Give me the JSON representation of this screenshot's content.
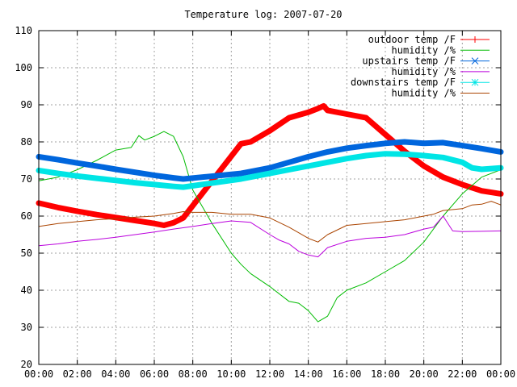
{
  "chart_data": {
    "type": "line",
    "title": "Temperature log: 2007-07-20",
    "xlabel": "",
    "ylabel": "",
    "xlim": [
      "00:00",
      "24:00"
    ],
    "ylim": [
      20,
      110
    ],
    "grid": true,
    "legend_position": "top-right",
    "x_ticks": [
      "00:00",
      "02:00",
      "04:00",
      "06:00",
      "08:00",
      "10:00",
      "12:00",
      "14:00",
      "16:00",
      "18:00",
      "20:00",
      "22:00",
      "00:00"
    ],
    "y_ticks": [
      20,
      30,
      40,
      50,
      60,
      70,
      80,
      90,
      100,
      110
    ],
    "series": [
      {
        "name": "outdoor temp /F",
        "color": "#ff0000",
        "marker": "plus",
        "x": [
          0,
          1,
          2,
          3,
          4,
          5,
          6,
          6.5,
          7,
          7.5,
          10.5,
          11,
          12,
          13,
          14,
          14.5,
          14.8,
          15,
          16,
          17,
          18,
          19,
          20,
          21,
          22,
          23,
          24
        ],
        "y": [
          63.5,
          62.3,
          61.3,
          60.4,
          59.6,
          58.8,
          58.0,
          57.5,
          58.2,
          59.5,
          79.5,
          80.0,
          83.0,
          86.5,
          88.0,
          89.0,
          89.7,
          88.5,
          87.5,
          86.5,
          82.0,
          77.5,
          73.5,
          70.5,
          68.5,
          66.8,
          66.0
        ]
      },
      {
        "name": "humidity /%",
        "color": "#00bb00",
        "marker": "none",
        "x": [
          0,
          1,
          2,
          3,
          4,
          4.8,
          5.2,
          5.5,
          6,
          6.5,
          7,
          7.5,
          8,
          9,
          10,
          10.5,
          11,
          12,
          13,
          13.5,
          14,
          14.5,
          15,
          15.5,
          16,
          17,
          18,
          19,
          20,
          21,
          22,
          23,
          24
        ],
        "y": [
          69.5,
          70.5,
          72.5,
          75.0,
          77.8,
          78.5,
          81.7,
          80.5,
          81.5,
          82.8,
          81.5,
          76.0,
          67.0,
          58.0,
          50.0,
          47.0,
          44.5,
          41.0,
          37.0,
          36.5,
          34.5,
          31.5,
          33.0,
          38.0,
          40.0,
          42.0,
          45.0,
          48.0,
          53.0,
          60.0,
          66.0,
          70.5,
          72.5
        ]
      },
      {
        "name": "upstairs temp /F",
        "color": "#0066dd",
        "marker": "x",
        "x": [
          0,
          1,
          2,
          3,
          4,
          5,
          6,
          7,
          7.5,
          10.5,
          11,
          12,
          13,
          14,
          15,
          16,
          17,
          18,
          19,
          20,
          21,
          22,
          23,
          24
        ],
        "y": [
          76.0,
          75.2,
          74.3,
          73.5,
          72.6,
          71.8,
          71.0,
          70.3,
          70.0,
          71.5,
          72.0,
          73.0,
          74.5,
          76.0,
          77.3,
          78.3,
          79.0,
          79.6,
          80.0,
          79.6,
          79.8,
          79.0,
          78.2,
          77.3
        ]
      },
      {
        "name": "humidity /%",
        "color": "#bb00dd",
        "marker": "none",
        "x": [
          0,
          1,
          2,
          3,
          4,
          5,
          6,
          7,
          8,
          9,
          10,
          11,
          12,
          12.5,
          13,
          13.5,
          14,
          14.5,
          15,
          16,
          17,
          18,
          19,
          20,
          20.5,
          21,
          21.5,
          22,
          23,
          24
        ],
        "y": [
          52.0,
          52.5,
          53.2,
          53.7,
          54.3,
          55.0,
          55.7,
          56.5,
          57.2,
          58.0,
          58.7,
          58.3,
          55.0,
          53.5,
          52.5,
          50.5,
          49.5,
          49.0,
          51.5,
          53.2,
          54.0,
          54.3,
          55.0,
          56.5,
          57.0,
          60.0,
          56.0,
          55.8,
          55.9,
          56.0
        ]
      },
      {
        "name": "downstairs temp /F",
        "color": "#00e5e5",
        "marker": "star",
        "x": [
          0,
          1,
          2,
          3,
          4,
          5,
          6,
          7,
          7.5,
          10.5,
          11,
          12,
          13,
          14,
          15,
          16,
          17,
          18,
          19,
          20,
          21,
          22,
          22.5,
          23,
          24
        ],
        "y": [
          72.3,
          71.5,
          70.8,
          70.2,
          69.6,
          69.0,
          68.5,
          68.0,
          67.8,
          70.0,
          70.5,
          71.5,
          72.5,
          73.5,
          74.5,
          75.5,
          76.3,
          76.8,
          76.7,
          76.3,
          75.8,
          74.5,
          73.0,
          72.6,
          73.0
        ]
      },
      {
        "name": "humidity /%",
        "color": "#aa4400",
        "marker": "none",
        "x": [
          0,
          1,
          2,
          3,
          4,
          5,
          6,
          7,
          7.5,
          8,
          9,
          10,
          11,
          12,
          13,
          13.5,
          14,
          14.5,
          15,
          16,
          17,
          18,
          19,
          20,
          20.5,
          21,
          22,
          22.5,
          23,
          23.5,
          24
        ],
        "y": [
          57.2,
          58.0,
          58.5,
          59.0,
          59.3,
          59.7,
          60.0,
          60.7,
          61.2,
          61.0,
          61.0,
          60.5,
          60.5,
          59.5,
          57.0,
          55.5,
          54.0,
          53.0,
          55.0,
          57.5,
          58.0,
          58.5,
          59.0,
          60.0,
          60.5,
          61.5,
          62.0,
          63.0,
          63.2,
          64.0,
          63.0
        ]
      }
    ]
  }
}
